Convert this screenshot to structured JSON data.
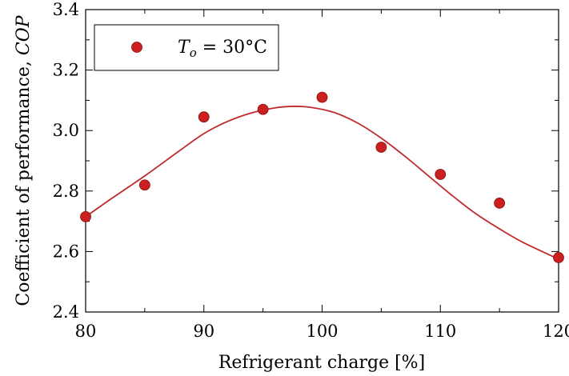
{
  "chart_data": {
    "type": "scatter",
    "title": "",
    "xlabel": "Refrigerant charge [%]",
    "ylabel_prefix": "Coefficient of performance, ",
    "ylabel_italic": "COP",
    "xlim": [
      80,
      120
    ],
    "ylim": [
      2.4,
      3.4
    ],
    "xticks": [
      80,
      90,
      100,
      110,
      120
    ],
    "yticks": [
      2.4,
      2.6,
      2.8,
      3.0,
      3.2,
      3.4
    ],
    "xtick_labels": [
      "80",
      "90",
      "100",
      "110",
      "120"
    ],
    "ytick_labels": [
      "2.4",
      "2.6",
      "2.8",
      "3.0",
      "3.2",
      "3.4"
    ],
    "grid": false,
    "legend_position": "top-left",
    "series": [
      {
        "legend_symbol": "T",
        "legend_subscript": "o",
        "legend_suffix": " = 30°C",
        "marker_color": "#cc1f1f",
        "points": [
          {
            "x": 80,
            "y": 2.715
          },
          {
            "x": 85,
            "y": 2.82
          },
          {
            "x": 90,
            "y": 3.045
          },
          {
            "x": 95,
            "y": 3.07
          },
          {
            "x": 100,
            "y": 3.11
          },
          {
            "x": 105,
            "y": 2.945
          },
          {
            "x": 110,
            "y": 2.855
          },
          {
            "x": 115,
            "y": 2.76
          },
          {
            "x": 120,
            "y": 2.58
          }
        ]
      }
    ],
    "fit_curve": {
      "color": "#c02a2a",
      "points": [
        {
          "x": 80,
          "y": 2.715
        },
        {
          "x": 82,
          "y": 2.77
        },
        {
          "x": 85,
          "y": 2.85
        },
        {
          "x": 88,
          "y": 2.935
        },
        {
          "x": 90,
          "y": 2.99
        },
        {
          "x": 92,
          "y": 3.03
        },
        {
          "x": 94,
          "y": 3.058
        },
        {
          "x": 96,
          "y": 3.075
        },
        {
          "x": 97.5,
          "y": 3.08
        },
        {
          "x": 99,
          "y": 3.077
        },
        {
          "x": 101,
          "y": 3.06
        },
        {
          "x": 103,
          "y": 3.025
        },
        {
          "x": 105,
          "y": 2.975
        },
        {
          "x": 107,
          "y": 2.915
        },
        {
          "x": 109,
          "y": 2.85
        },
        {
          "x": 111,
          "y": 2.785
        },
        {
          "x": 113,
          "y": 2.725
        },
        {
          "x": 115,
          "y": 2.675
        },
        {
          "x": 117,
          "y": 2.63
        },
        {
          "x": 120,
          "y": 2.575
        }
      ]
    }
  }
}
